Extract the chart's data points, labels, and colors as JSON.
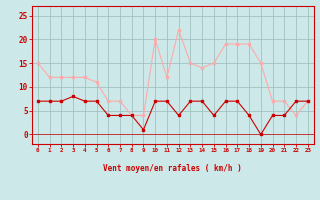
{
  "x": [
    0,
    1,
    2,
    3,
    4,
    5,
    6,
    7,
    8,
    9,
    10,
    11,
    12,
    13,
    14,
    15,
    16,
    17,
    18,
    19,
    20,
    21,
    22,
    23
  ],
  "wind_avg": [
    7,
    7,
    7,
    8,
    7,
    7,
    4,
    4,
    4,
    1,
    7,
    7,
    4,
    7,
    7,
    4,
    7,
    7,
    4,
    0,
    4,
    4,
    7,
    7
  ],
  "wind_gust": [
    15,
    12,
    12,
    12,
    12,
    11,
    7,
    7,
    4,
    4,
    20,
    12,
    22,
    15,
    14,
    15,
    19,
    19,
    19,
    15,
    7,
    7,
    4,
    7
  ],
  "color_avg": "#cc0000",
  "color_gust": "#ffaaaa",
  "bg_color": "#cce8e8",
  "grid_color": "#99bbbb",
  "xlabel": "Vent moyen/en rafales ( km/h )",
  "ylabel_ticks": [
    0,
    5,
    10,
    15,
    20,
    25
  ],
  "xlim": [
    -0.5,
    23.5
  ],
  "ylim": [
    -2,
    27
  ],
  "tick_color": "#cc0000",
  "label_color": "#cc0000",
  "spine_color": "#cc0000",
  "wind_dirs": [
    "←",
    "↖",
    "←",
    "←",
    "←",
    "←",
    "←",
    "←",
    "↖",
    "↙",
    "↘",
    "↘",
    "↓",
    "↓",
    "↓",
    "↘",
    "↙",
    "↓",
    "↙",
    "↙",
    "←",
    "←",
    "←",
    "←"
  ]
}
